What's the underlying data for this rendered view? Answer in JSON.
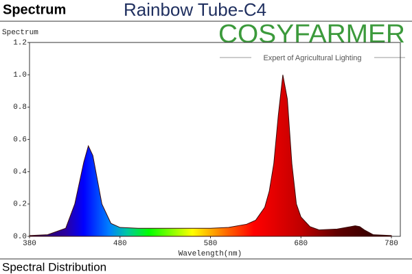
{
  "header": {
    "label": "Spectrum",
    "title": "Rainbow Tube-C4"
  },
  "logo": {
    "name": "COSYFARMER",
    "tagline": "Expert of Agricultural Lighting"
  },
  "footer": "Spectral Distribution",
  "chart_data": {
    "type": "area",
    "y_label": "Spectrum",
    "x_label": "Wavelength(nm)",
    "x": [
      380,
      400,
      420,
      430,
      435,
      440,
      445,
      450,
      455,
      460,
      470,
      480,
      500,
      520,
      540,
      560,
      580,
      600,
      620,
      630,
      640,
      645,
      650,
      655,
      660,
      665,
      670,
      675,
      680,
      690,
      700,
      720,
      735,
      740,
      745,
      750,
      760,
      780
    ],
    "values": [
      0.005,
      0.01,
      0.05,
      0.2,
      0.33,
      0.46,
      0.56,
      0.5,
      0.35,
      0.2,
      0.08,
      0.055,
      0.05,
      0.05,
      0.05,
      0.05,
      0.05,
      0.055,
      0.075,
      0.1,
      0.18,
      0.28,
      0.45,
      0.75,
      1.0,
      0.85,
      0.45,
      0.2,
      0.12,
      0.06,
      0.04,
      0.045,
      0.06,
      0.065,
      0.06,
      0.04,
      0.01,
      0.005
    ],
    "xlim": [
      380,
      780
    ],
    "xticks": [
      380,
      480,
      580,
      680,
      780
    ],
    "ylim": [
      0,
      1.2
    ],
    "yticks": [
      {
        "value": 0,
        "label": "0.0"
      },
      0.2,
      0.4,
      0.6,
      0.8,
      {
        "value": 1,
        "label": "1.0"
      },
      1.2
    ],
    "color": "#3a0a0a"
  }
}
